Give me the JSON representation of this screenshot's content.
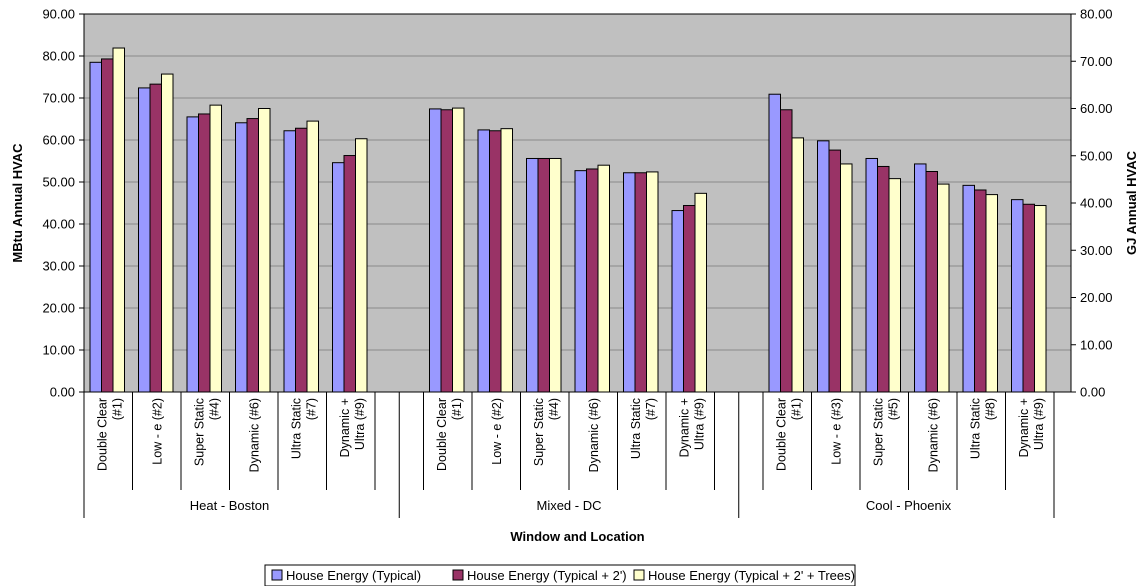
{
  "chart_data": {
    "type": "bar",
    "xlabel": "Window and Location",
    "ylabel": "MBtu Annual HVAC",
    "y2label": "GJ Annual HVAC",
    "ylim": [
      0,
      90
    ],
    "y_ticks": [
      "0.00",
      "10.00",
      "20.00",
      "30.00",
      "40.00",
      "50.00",
      "60.00",
      "70.00",
      "80.00",
      "90.00"
    ],
    "y2lim": [
      0,
      80
    ],
    "y2_ticks": [
      "0.00",
      "10.00",
      "20.00",
      "30.00",
      "40.00",
      "50.00",
      "60.00",
      "70.00",
      "80.00"
    ],
    "grid": true,
    "legend_position": "bottom",
    "colors": [
      "#9999ff",
      "#993366",
      "#ffffcc"
    ],
    "groups": [
      {
        "name": "Heat - Boston",
        "categories": [
          [
            "Double Clear",
            "(#1)"
          ],
          [
            "Low - e (#2)"
          ],
          [
            "Super Static",
            "(#4)"
          ],
          [
            "Dynamic (#6)"
          ],
          [
            "Ultra Static",
            "(#7)"
          ],
          [
            "Dynamic +",
            "Ultra (#9)"
          ]
        ]
      },
      {
        "name": "Mixed - DC",
        "categories": [
          [
            "Double Clear",
            "(#1)"
          ],
          [
            "Low - e (#2)"
          ],
          [
            "Super Static",
            "(#4)"
          ],
          [
            "Dynamic (#6)"
          ],
          [
            "Ultra Static",
            "(#7)"
          ],
          [
            "Dynamic +",
            "Ultra (#9)"
          ]
        ]
      },
      {
        "name": "Cool - Phoenix",
        "categories": [
          [
            "Double Clear",
            "(#1)"
          ],
          [
            "Low - e (#3)"
          ],
          [
            "Super Static",
            "(#5)"
          ],
          [
            "Dynamic (#6)"
          ],
          [
            "Ultra Static",
            "(#8)"
          ],
          [
            "Dynamic +",
            "Ultra (#9)"
          ]
        ]
      }
    ],
    "series": [
      {
        "name": "House Energy (Typical)",
        "values": [
          78.5,
          72.4,
          65.5,
          64.1,
          62.2,
          54.6,
          67.4,
          62.4,
          55.6,
          52.7,
          52.2,
          43.2,
          70.9,
          59.8,
          55.6,
          54.3,
          49.2,
          45.8
        ]
      },
      {
        "name": "House Energy (Typical + 2')",
        "values": [
          79.3,
          73.3,
          66.2,
          65.1,
          62.8,
          56.3,
          67.2,
          62.2,
          55.6,
          53.1,
          52.2,
          44.4,
          67.2,
          57.6,
          53.7,
          52.5,
          48.1,
          44.7
        ]
      },
      {
        "name": "House Energy (Typical + 2' + Trees)",
        "values": [
          81.9,
          75.7,
          68.3,
          67.5,
          64.5,
          60.3,
          67.6,
          62.7,
          55.6,
          54.0,
          52.4,
          47.3,
          60.5,
          54.3,
          50.8,
          49.5,
          47.0,
          44.4
        ]
      }
    ]
  }
}
